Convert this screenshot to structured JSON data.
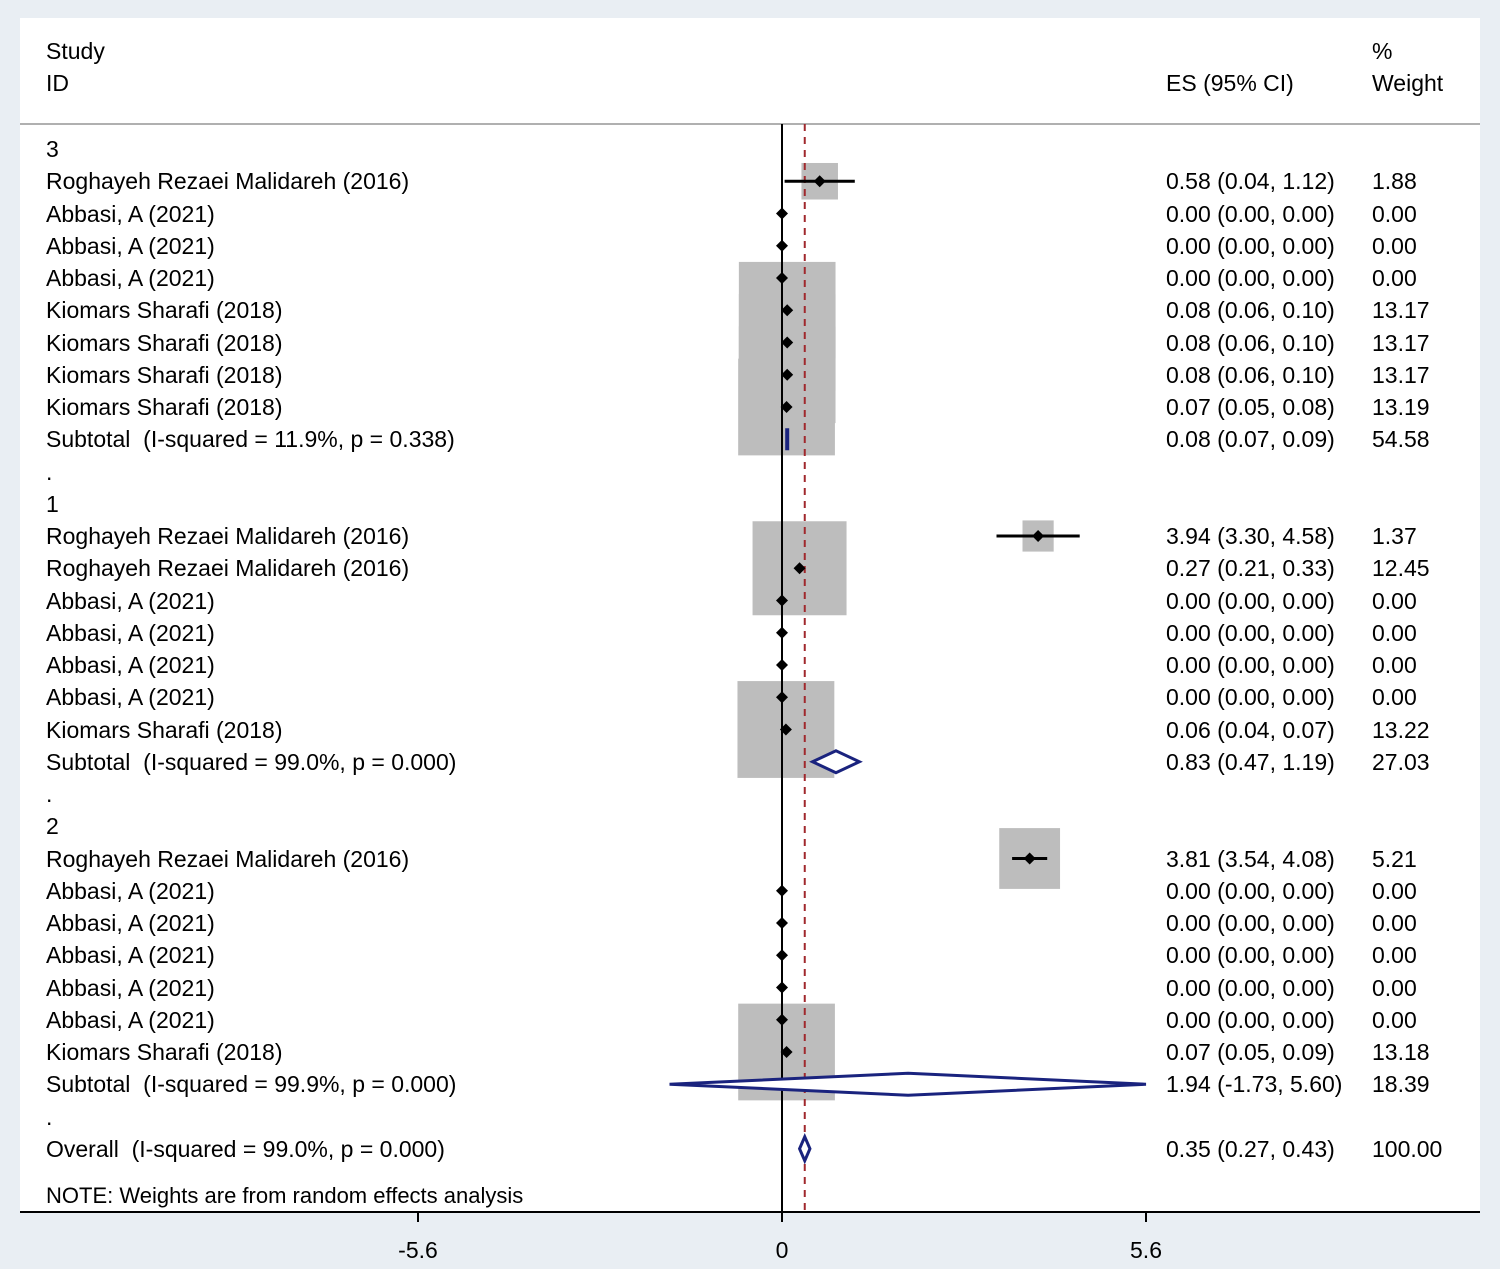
{
  "header": {
    "study": "Study",
    "id": "ID",
    "es": "ES (95% CI)",
    "pct": "%",
    "weight": "Weight"
  },
  "note": "NOTE: Weights are from random effects analysis",
  "colors": {
    "box": "#bdbdbd",
    "point": "#000000",
    "diamond": "#1a237e",
    "ref_line": "#a0282d",
    "axis": "#000000",
    "background": "#e9eef3"
  },
  "chart_data": {
    "type": "forest",
    "xlim": [
      -6.5,
      6.5
    ],
    "x_ticks": [
      -5.6,
      0,
      5.6
    ],
    "x_tick_labels": [
      "-5.6",
      "0",
      "5.6"
    ],
    "null_line": 0,
    "overall_line": 0.35,
    "rows": [
      {
        "kind": "group",
        "label": "3"
      },
      {
        "kind": "study",
        "label": "Roghayeh Rezaei Malidareh (2016)",
        "es": 0.58,
        "lo": 0.04,
        "hi": 1.12,
        "es_text": "0.58 (0.04, 1.12)",
        "weight": 1.88,
        "weight_text": "1.88"
      },
      {
        "kind": "study",
        "label": "Abbasi, A (2021)",
        "es": 0.0,
        "lo": 0.0,
        "hi": 0.0,
        "es_text": "0.00 (0.00, 0.00)",
        "weight": 0.0,
        "weight_text": "0.00"
      },
      {
        "kind": "study",
        "label": "Abbasi, A (2021)",
        "es": 0.0,
        "lo": 0.0,
        "hi": 0.0,
        "es_text": "0.00 (0.00, 0.00)",
        "weight": 0.0,
        "weight_text": "0.00"
      },
      {
        "kind": "study",
        "label": "Abbasi, A (2021)",
        "es": 0.0,
        "lo": 0.0,
        "hi": 0.0,
        "es_text": "0.00 (0.00, 0.00)",
        "weight": 0.0,
        "weight_text": "0.00"
      },
      {
        "kind": "study",
        "label": "Kiomars Sharafi (2018)",
        "es": 0.08,
        "lo": 0.06,
        "hi": 0.1,
        "es_text": "0.08 (0.06, 0.10)",
        "weight": 13.17,
        "weight_text": "13.17"
      },
      {
        "kind": "study",
        "label": "Kiomars Sharafi (2018)",
        "es": 0.08,
        "lo": 0.06,
        "hi": 0.1,
        "es_text": "0.08 (0.06, 0.10)",
        "weight": 13.17,
        "weight_text": "13.17"
      },
      {
        "kind": "study",
        "label": "Kiomars Sharafi (2018)",
        "es": 0.08,
        "lo": 0.06,
        "hi": 0.1,
        "es_text": "0.08 (0.06, 0.10)",
        "weight": 13.17,
        "weight_text": "13.17"
      },
      {
        "kind": "study",
        "label": "Kiomars Sharafi (2018)",
        "es": 0.07,
        "lo": 0.05,
        "hi": 0.08,
        "es_text": "0.07 (0.05, 0.08)",
        "weight": 13.19,
        "weight_text": "13.19"
      },
      {
        "kind": "subtotal",
        "label": "Subtotal  (I-squared = 11.9%, p = 0.338)",
        "es": 0.08,
        "lo": 0.07,
        "hi": 0.09,
        "es_text": "0.08 (0.07, 0.09)",
        "weight": 54.58,
        "weight_text": "54.58"
      },
      {
        "kind": "spacer",
        "label": "."
      },
      {
        "kind": "group",
        "label": "1"
      },
      {
        "kind": "study",
        "label": "Roghayeh Rezaei Malidareh (2016)",
        "es": 3.94,
        "lo": 3.3,
        "hi": 4.58,
        "es_text": "3.94 (3.30, 4.58)",
        "weight": 1.37,
        "weight_text": "1.37"
      },
      {
        "kind": "study",
        "label": "Roghayeh Rezaei Malidareh (2016)",
        "es": 0.27,
        "lo": 0.21,
        "hi": 0.33,
        "es_text": "0.27 (0.21, 0.33)",
        "weight": 12.45,
        "weight_text": "12.45"
      },
      {
        "kind": "study",
        "label": "Abbasi, A (2021)",
        "es": 0.0,
        "lo": 0.0,
        "hi": 0.0,
        "es_text": "0.00 (0.00, 0.00)",
        "weight": 0.0,
        "weight_text": "0.00"
      },
      {
        "kind": "study",
        "label": "Abbasi, A (2021)",
        "es": 0.0,
        "lo": 0.0,
        "hi": 0.0,
        "es_text": "0.00 (0.00, 0.00)",
        "weight": 0.0,
        "weight_text": "0.00"
      },
      {
        "kind": "study",
        "label": "Abbasi, A (2021)",
        "es": 0.0,
        "lo": 0.0,
        "hi": 0.0,
        "es_text": "0.00 (0.00, 0.00)",
        "weight": 0.0,
        "weight_text": "0.00"
      },
      {
        "kind": "study",
        "label": "Abbasi, A (2021)",
        "es": 0.0,
        "lo": 0.0,
        "hi": 0.0,
        "es_text": "0.00 (0.00, 0.00)",
        "weight": 0.0,
        "weight_text": "0.00"
      },
      {
        "kind": "study",
        "label": "Kiomars Sharafi (2018)",
        "es": 0.06,
        "lo": 0.04,
        "hi": 0.07,
        "es_text": "0.06 (0.04, 0.07)",
        "weight": 13.22,
        "weight_text": "13.22"
      },
      {
        "kind": "subtotal",
        "label": "Subtotal  (I-squared = 99.0%, p = 0.000)",
        "es": 0.83,
        "lo": 0.47,
        "hi": 1.19,
        "es_text": "0.83 (0.47, 1.19)",
        "weight": 27.03,
        "weight_text": "27.03"
      },
      {
        "kind": "spacer",
        "label": "."
      },
      {
        "kind": "group",
        "label": "2"
      },
      {
        "kind": "study",
        "label": "Roghayeh Rezaei Malidareh (2016)",
        "es": 3.81,
        "lo": 3.54,
        "hi": 4.08,
        "es_text": "3.81 (3.54, 4.08)",
        "weight": 5.21,
        "weight_text": "5.21"
      },
      {
        "kind": "study",
        "label": "Abbasi, A (2021)",
        "es": 0.0,
        "lo": 0.0,
        "hi": 0.0,
        "es_text": "0.00 (0.00, 0.00)",
        "weight": 0.0,
        "weight_text": "0.00"
      },
      {
        "kind": "study",
        "label": "Abbasi, A (2021)",
        "es": 0.0,
        "lo": 0.0,
        "hi": 0.0,
        "es_text": "0.00 (0.00, 0.00)",
        "weight": 0.0,
        "weight_text": "0.00"
      },
      {
        "kind": "study",
        "label": "Abbasi, A (2021)",
        "es": 0.0,
        "lo": 0.0,
        "hi": 0.0,
        "es_text": "0.00 (0.00, 0.00)",
        "weight": 0.0,
        "weight_text": "0.00"
      },
      {
        "kind": "study",
        "label": "Abbasi, A (2021)",
        "es": 0.0,
        "lo": 0.0,
        "hi": 0.0,
        "es_text": "0.00 (0.00, 0.00)",
        "weight": 0.0,
        "weight_text": "0.00"
      },
      {
        "kind": "study",
        "label": "Abbasi, A (2021)",
        "es": 0.0,
        "lo": 0.0,
        "hi": 0.0,
        "es_text": "0.00 (0.00, 0.00)",
        "weight": 0.0,
        "weight_text": "0.00"
      },
      {
        "kind": "study",
        "label": "Kiomars Sharafi (2018)",
        "es": 0.07,
        "lo": 0.05,
        "hi": 0.09,
        "es_text": "0.07 (0.05, 0.09)",
        "weight": 13.18,
        "weight_text": "13.18"
      },
      {
        "kind": "subtotal",
        "label": "Subtotal  (I-squared = 99.9%, p = 0.000)",
        "es": 1.94,
        "lo": -1.73,
        "hi": 5.6,
        "es_text": "1.94 (-1.73, 5.60)",
        "weight": 18.39,
        "weight_text": "18.39"
      },
      {
        "kind": "spacer",
        "label": "."
      },
      {
        "kind": "overall",
        "label": "Overall  (I-squared = 99.0%, p = 0.000)",
        "es": 0.35,
        "lo": 0.27,
        "hi": 0.43,
        "es_text": "0.35 (0.27, 0.43)",
        "weight": 100.0,
        "weight_text": "100.00"
      }
    ]
  }
}
